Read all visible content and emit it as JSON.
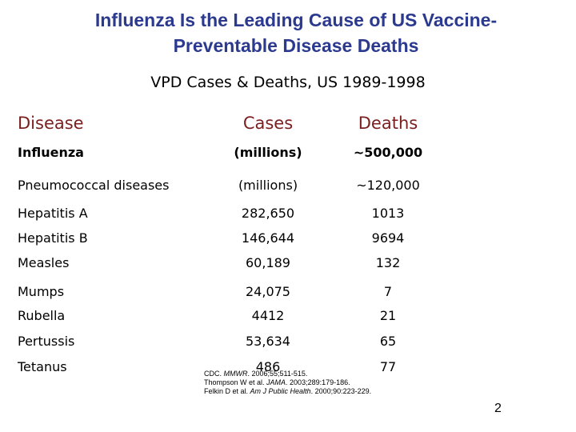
{
  "header": {
    "title_lines": [
      "Influenza Is the Leading Cause of US Vaccine-",
      "Preventable Disease Deaths"
    ],
    "subtitle": "VPD Cases & Deaths, US 1989-1998"
  },
  "table": {
    "columns": [
      "Disease",
      "Cases",
      "Deaths"
    ],
    "rows": [
      [
        "Influenza",
        "(millions)",
        "~500,000"
      ],
      [
        "Pneumococcal diseases",
        "(millions)",
        "~120,000"
      ],
      [
        "Hepatitis A",
        "282,650",
        "1013"
      ],
      [
        "Hepatitis B",
        "146,644",
        "9694"
      ],
      [
        "Measles",
        "60,189",
        "132"
      ],
      [
        "Mumps",
        "24,075",
        "7"
      ],
      [
        "Rubella",
        "4412",
        "21"
      ],
      [
        "Pertussis",
        "53,634",
        "65"
      ],
      [
        "Tetanus",
        "486",
        "77"
      ]
    ]
  },
  "references": [
    [
      "CDC. ",
      "MMWR",
      ". 2006;55;511-515."
    ],
    [
      "Thompson W et al. ",
      "JAMA",
      ". 2003;289:179-186."
    ],
    [
      "Felkin D et al. ",
      "Am J Public Health",
      ". 2000;90:223-229."
    ]
  ],
  "page_number": "2"
}
